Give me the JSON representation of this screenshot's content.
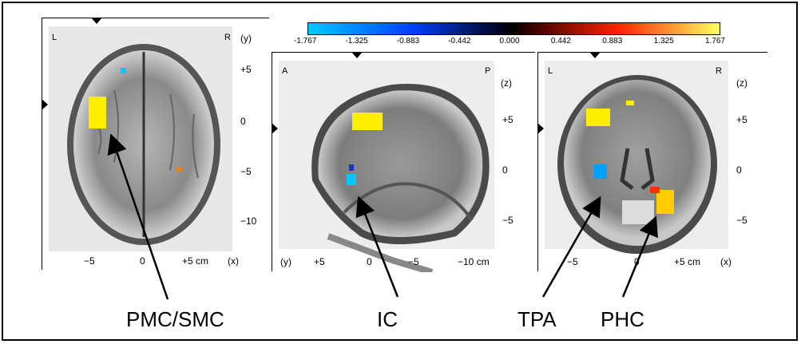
{
  "colorbar": {
    "tick_labels": [
      "-1.767",
      "-1.325",
      "-0.883",
      "-0.442",
      "0.000",
      "0.442",
      "0.883",
      "1.325",
      "1.767"
    ],
    "min": -1.767,
    "max": 1.767,
    "colors": [
      "#00c8ff",
      "#0040ff",
      "#000000",
      "#ff2000",
      "#ffff60"
    ]
  },
  "panels": {
    "axial": {
      "corner_left": "L",
      "corner_right": "R",
      "side_axis": "(y)",
      "bottom_axis": "(x)",
      "right_ticks": [
        "+5",
        "0",
        "−5",
        "−10"
      ],
      "bottom_ticks": [
        "−5",
        "0",
        "+5 cm"
      ]
    },
    "sagittal": {
      "corner_left": "A",
      "corner_right": "P",
      "side_axis": "(z)",
      "bottom_axis": "(y)",
      "right_ticks": [
        "+5",
        "0",
        "−5"
      ],
      "bottom_ticks": [
        "+5",
        "0",
        "−5",
        "−10 cm"
      ]
    },
    "coronal": {
      "corner_left": "L",
      "corner_right": "R",
      "side_axis": "(z)",
      "bottom_axis": "(x)",
      "right_ticks": [
        "+5",
        "0",
        "−5"
      ],
      "bottom_ticks": [
        "−5",
        "0",
        "+5 cm"
      ]
    }
  },
  "region_labels": {
    "pmc_smc": "PMC/SMC",
    "ic": "IC",
    "tpa": "TPA",
    "phc": "PHC"
  }
}
